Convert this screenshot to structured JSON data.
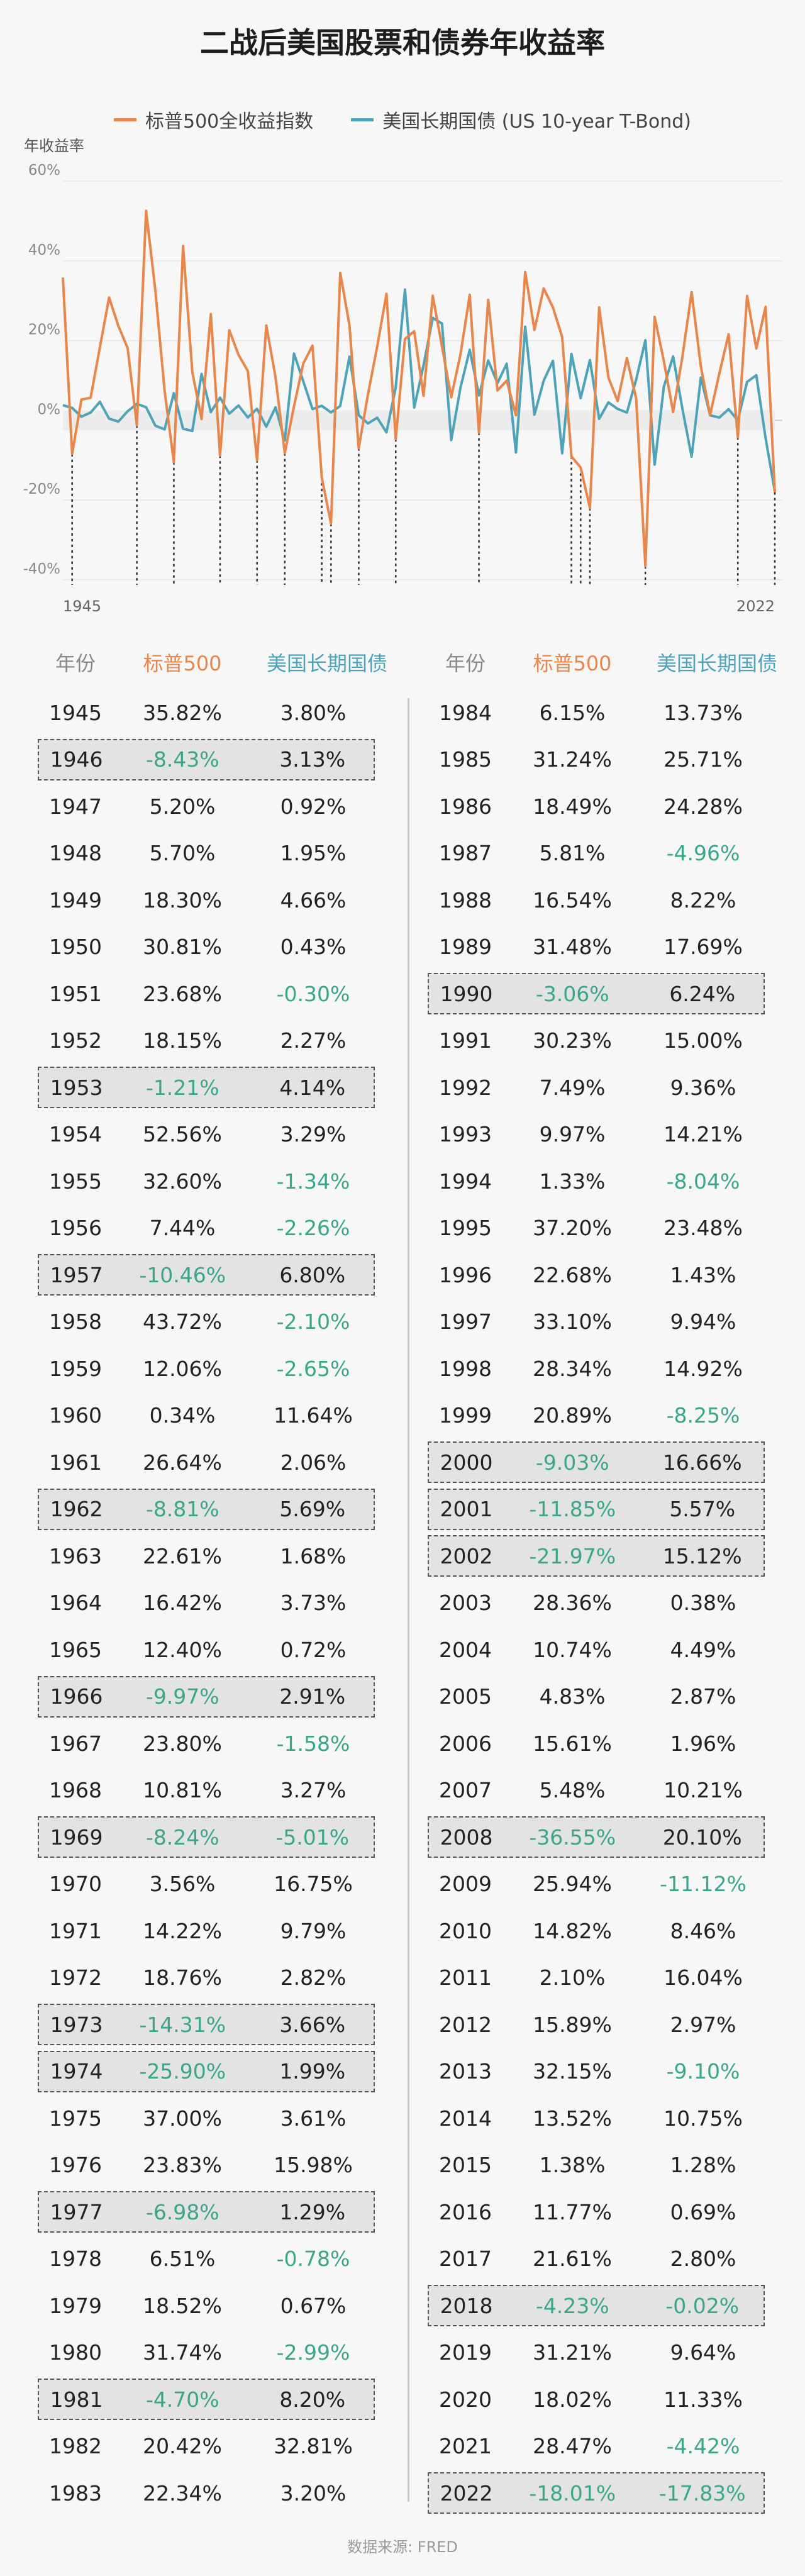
{
  "title": "二战后美国股票和债券年收益率",
  "legend": {
    "sp500": "标普500全收益指数",
    "bond": "美国长期国债 (US 10-year T-Bond)"
  },
  "colors": {
    "sp500": "#e8874c",
    "bond": "#4ea3b8",
    "negative": "#3aa68a"
  },
  "table_headers": {
    "year": "年份",
    "sp500": "标普500",
    "bond": "美国长期国债"
  },
  "source": "数据来源: FRED",
  "chart_data": {
    "type": "line",
    "ylabel": "年收益率",
    "ylim": [
      -40,
      60
    ],
    "yticks": [
      "60%",
      "40%",
      "20%",
      "0%",
      "-20%",
      "-40%"
    ],
    "yticks_values": [
      60,
      40,
      20,
      0,
      -20,
      -40
    ],
    "x_start_label": "1945",
    "x_end_label": "2022",
    "grid": true,
    "legend_position": "top",
    "x": [
      1945,
      1946,
      1947,
      1948,
      1949,
      1950,
      1951,
      1952,
      1953,
      1954,
      1955,
      1956,
      1957,
      1958,
      1959,
      1960,
      1961,
      1962,
      1963,
      1964,
      1965,
      1966,
      1967,
      1968,
      1969,
      1970,
      1971,
      1972,
      1973,
      1974,
      1975,
      1976,
      1977,
      1978,
      1979,
      1980,
      1981,
      1982,
      1983,
      1984,
      1985,
      1986,
      1987,
      1988,
      1989,
      1990,
      1991,
      1992,
      1993,
      1994,
      1995,
      1996,
      1997,
      1998,
      1999,
      2000,
      2001,
      2002,
      2003,
      2004,
      2005,
      2006,
      2007,
      2008,
      2009,
      2010,
      2011,
      2012,
      2013,
      2014,
      2015,
      2016,
      2017,
      2018,
      2019,
      2020,
      2021,
      2022
    ],
    "series": [
      {
        "name": "标普500全收益指数",
        "values": [
          35.82,
          -8.43,
          5.2,
          5.7,
          18.3,
          30.81,
          23.68,
          18.15,
          -1.21,
          52.56,
          32.6,
          7.44,
          -10.46,
          43.72,
          12.06,
          0.34,
          26.64,
          -8.81,
          22.61,
          16.42,
          12.4,
          -9.97,
          23.8,
          10.81,
          -8.24,
          3.56,
          14.22,
          18.76,
          -14.31,
          -25.9,
          37.0,
          23.83,
          -6.98,
          6.51,
          18.52,
          31.74,
          -4.7,
          20.42,
          22.34,
          6.15,
          31.24,
          18.49,
          5.81,
          16.54,
          31.48,
          -3.06,
          30.23,
          7.49,
          9.97,
          1.33,
          37.2,
          22.68,
          33.1,
          28.34,
          20.89,
          -9.03,
          -11.85,
          -21.97,
          28.36,
          10.74,
          4.83,
          15.61,
          5.48,
          -36.55,
          25.94,
          14.82,
          2.1,
          15.89,
          32.15,
          13.52,
          1.38,
          11.77,
          21.61,
          -4.23,
          31.21,
          18.02,
          28.47,
          -18.01
        ]
      },
      {
        "name": "美国长期国债 (US 10-year T-Bond)",
        "values": [
          3.8,
          3.13,
          0.92,
          1.95,
          4.66,
          0.43,
          -0.3,
          2.27,
          4.14,
          3.29,
          -1.34,
          -2.26,
          6.8,
          -2.1,
          -2.65,
          11.64,
          2.06,
          5.69,
          1.68,
          3.73,
          0.72,
          2.91,
          -1.58,
          3.27,
          -5.01,
          16.75,
          9.79,
          2.82,
          3.66,
          1.99,
          3.61,
          15.98,
          1.29,
          -0.78,
          0.67,
          -2.99,
          8.2,
          32.81,
          3.2,
          13.73,
          25.71,
          24.28,
          -4.96,
          8.22,
          17.69,
          6.24,
          15.0,
          9.36,
          14.21,
          -8.04,
          23.48,
          1.43,
          9.94,
          14.92,
          -8.25,
          16.66,
          5.57,
          15.12,
          0.38,
          4.49,
          2.87,
          1.96,
          10.21,
          20.1,
          -11.12,
          8.46,
          16.04,
          2.97,
          -9.1,
          10.75,
          1.28,
          0.69,
          2.8,
          -0.02,
          9.64,
          11.33,
          -4.42,
          -17.83
        ]
      }
    ]
  },
  "table": {
    "left": [
      {
        "year": "1945",
        "sp": "35.82%",
        "bond": "3.80%"
      },
      {
        "year": "1946",
        "sp": "-8.43%",
        "bond": "3.13%"
      },
      {
        "year": "1947",
        "sp": "5.20%",
        "bond": "0.92%"
      },
      {
        "year": "1948",
        "sp": "5.70%",
        "bond": "1.95%"
      },
      {
        "year": "1949",
        "sp": "18.30%",
        "bond": "4.66%"
      },
      {
        "year": "1950",
        "sp": "30.81%",
        "bond": "0.43%"
      },
      {
        "year": "1951",
        "sp": "23.68%",
        "bond": "-0.30%"
      },
      {
        "year": "1952",
        "sp": "18.15%",
        "bond": "2.27%"
      },
      {
        "year": "1953",
        "sp": "-1.21%",
        "bond": "4.14%"
      },
      {
        "year": "1954",
        "sp": "52.56%",
        "bond": "3.29%"
      },
      {
        "year": "1955",
        "sp": "32.60%",
        "bond": "-1.34%"
      },
      {
        "year": "1956",
        "sp": "7.44%",
        "bond": "-2.26%"
      },
      {
        "year": "1957",
        "sp": "-10.46%",
        "bond": "6.80%"
      },
      {
        "year": "1958",
        "sp": "43.72%",
        "bond": "-2.10%"
      },
      {
        "year": "1959",
        "sp": "12.06%",
        "bond": "-2.65%"
      },
      {
        "year": "1960",
        "sp": "0.34%",
        "bond": "11.64%"
      },
      {
        "year": "1961",
        "sp": "26.64%",
        "bond": "2.06%"
      },
      {
        "year": "1962",
        "sp": "-8.81%",
        "bond": "5.69%"
      },
      {
        "year": "1963",
        "sp": "22.61%",
        "bond": "1.68%"
      },
      {
        "year": "1964",
        "sp": "16.42%",
        "bond": "3.73%"
      },
      {
        "year": "1965",
        "sp": "12.40%",
        "bond": "0.72%"
      },
      {
        "year": "1966",
        "sp": "-9.97%",
        "bond": "2.91%"
      },
      {
        "year": "1967",
        "sp": "23.80%",
        "bond": "-1.58%"
      },
      {
        "year": "1968",
        "sp": "10.81%",
        "bond": "3.27%"
      },
      {
        "year": "1969",
        "sp": "-8.24%",
        "bond": "-5.01%"
      },
      {
        "year": "1970",
        "sp": "3.56%",
        "bond": "16.75%"
      },
      {
        "year": "1971",
        "sp": "14.22%",
        "bond": "9.79%"
      },
      {
        "year": "1972",
        "sp": "18.76%",
        "bond": "2.82%"
      },
      {
        "year": "1973",
        "sp": "-14.31%",
        "bond": "3.66%"
      },
      {
        "year": "1974",
        "sp": "-25.90%",
        "bond": "1.99%"
      },
      {
        "year": "1975",
        "sp": "37.00%",
        "bond": "3.61%"
      },
      {
        "year": "1976",
        "sp": "23.83%",
        "bond": "15.98%"
      },
      {
        "year": "1977",
        "sp": "-6.98%",
        "bond": "1.29%"
      },
      {
        "year": "1978",
        "sp": "6.51%",
        "bond": "-0.78%"
      },
      {
        "year": "1979",
        "sp": "18.52%",
        "bond": "0.67%"
      },
      {
        "year": "1980",
        "sp": "31.74%",
        "bond": "-2.99%"
      },
      {
        "year": "1981",
        "sp": "-4.70%",
        "bond": "8.20%"
      },
      {
        "year": "1982",
        "sp": "20.42%",
        "bond": "32.81%"
      },
      {
        "year": "1983",
        "sp": "22.34%",
        "bond": "3.20%"
      }
    ],
    "right": [
      {
        "year": "1984",
        "sp": "6.15%",
        "bond": "13.73%"
      },
      {
        "year": "1985",
        "sp": "31.24%",
        "bond": "25.71%"
      },
      {
        "year": "1986",
        "sp": "18.49%",
        "bond": "24.28%"
      },
      {
        "year": "1987",
        "sp": "5.81%",
        "bond": "-4.96%"
      },
      {
        "year": "1988",
        "sp": "16.54%",
        "bond": "8.22%"
      },
      {
        "year": "1989",
        "sp": "31.48%",
        "bond": "17.69%"
      },
      {
        "year": "1990",
        "sp": "-3.06%",
        "bond": "6.24%"
      },
      {
        "year": "1991",
        "sp": "30.23%",
        "bond": "15.00%"
      },
      {
        "year": "1992",
        "sp": "7.49%",
        "bond": "9.36%"
      },
      {
        "year": "1993",
        "sp": "9.97%",
        "bond": "14.21%"
      },
      {
        "year": "1994",
        "sp": "1.33%",
        "bond": "-8.04%"
      },
      {
        "year": "1995",
        "sp": "37.20%",
        "bond": "23.48%"
      },
      {
        "year": "1996",
        "sp": "22.68%",
        "bond": "1.43%"
      },
      {
        "year": "1997",
        "sp": "33.10%",
        "bond": "9.94%"
      },
      {
        "year": "1998",
        "sp": "28.34%",
        "bond": "14.92%"
      },
      {
        "year": "1999",
        "sp": "20.89%",
        "bond": "-8.25%"
      },
      {
        "year": "2000",
        "sp": "-9.03%",
        "bond": "16.66%"
      },
      {
        "year": "2001",
        "sp": "-11.85%",
        "bond": "5.57%"
      },
      {
        "year": "2002",
        "sp": "-21.97%",
        "bond": "15.12%"
      },
      {
        "year": "2003",
        "sp": "28.36%",
        "bond": "0.38%"
      },
      {
        "year": "2004",
        "sp": "10.74%",
        "bond": "4.49%"
      },
      {
        "year": "2005",
        "sp": "4.83%",
        "bond": "2.87%"
      },
      {
        "year": "2006",
        "sp": "15.61%",
        "bond": "1.96%"
      },
      {
        "year": "2007",
        "sp": "5.48%",
        "bond": "10.21%"
      },
      {
        "year": "2008",
        "sp": "-36.55%",
        "bond": "20.10%"
      },
      {
        "year": "2009",
        "sp": "25.94%",
        "bond": "-11.12%"
      },
      {
        "year": "2010",
        "sp": "14.82%",
        "bond": "8.46%"
      },
      {
        "year": "2011",
        "sp": "2.10%",
        "bond": "16.04%"
      },
      {
        "year": "2012",
        "sp": "15.89%",
        "bond": "2.97%"
      },
      {
        "year": "2013",
        "sp": "32.15%",
        "bond": "-9.10%"
      },
      {
        "year": "2014",
        "sp": "13.52%",
        "bond": "10.75%"
      },
      {
        "year": "2015",
        "sp": "1.38%",
        "bond": "1.28%"
      },
      {
        "year": "2016",
        "sp": "11.77%",
        "bond": "0.69%"
      },
      {
        "year": "2017",
        "sp": "21.61%",
        "bond": "2.80%"
      },
      {
        "year": "2018",
        "sp": "-4.23%",
        "bond": "-0.02%"
      },
      {
        "year": "2019",
        "sp": "31.21%",
        "bond": "9.64%"
      },
      {
        "year": "2020",
        "sp": "18.02%",
        "bond": "11.33%"
      },
      {
        "year": "2021",
        "sp": "28.47%",
        "bond": "-4.42%"
      },
      {
        "year": "2022",
        "sp": "-18.01%",
        "bond": "-17.83%"
      }
    ]
  }
}
